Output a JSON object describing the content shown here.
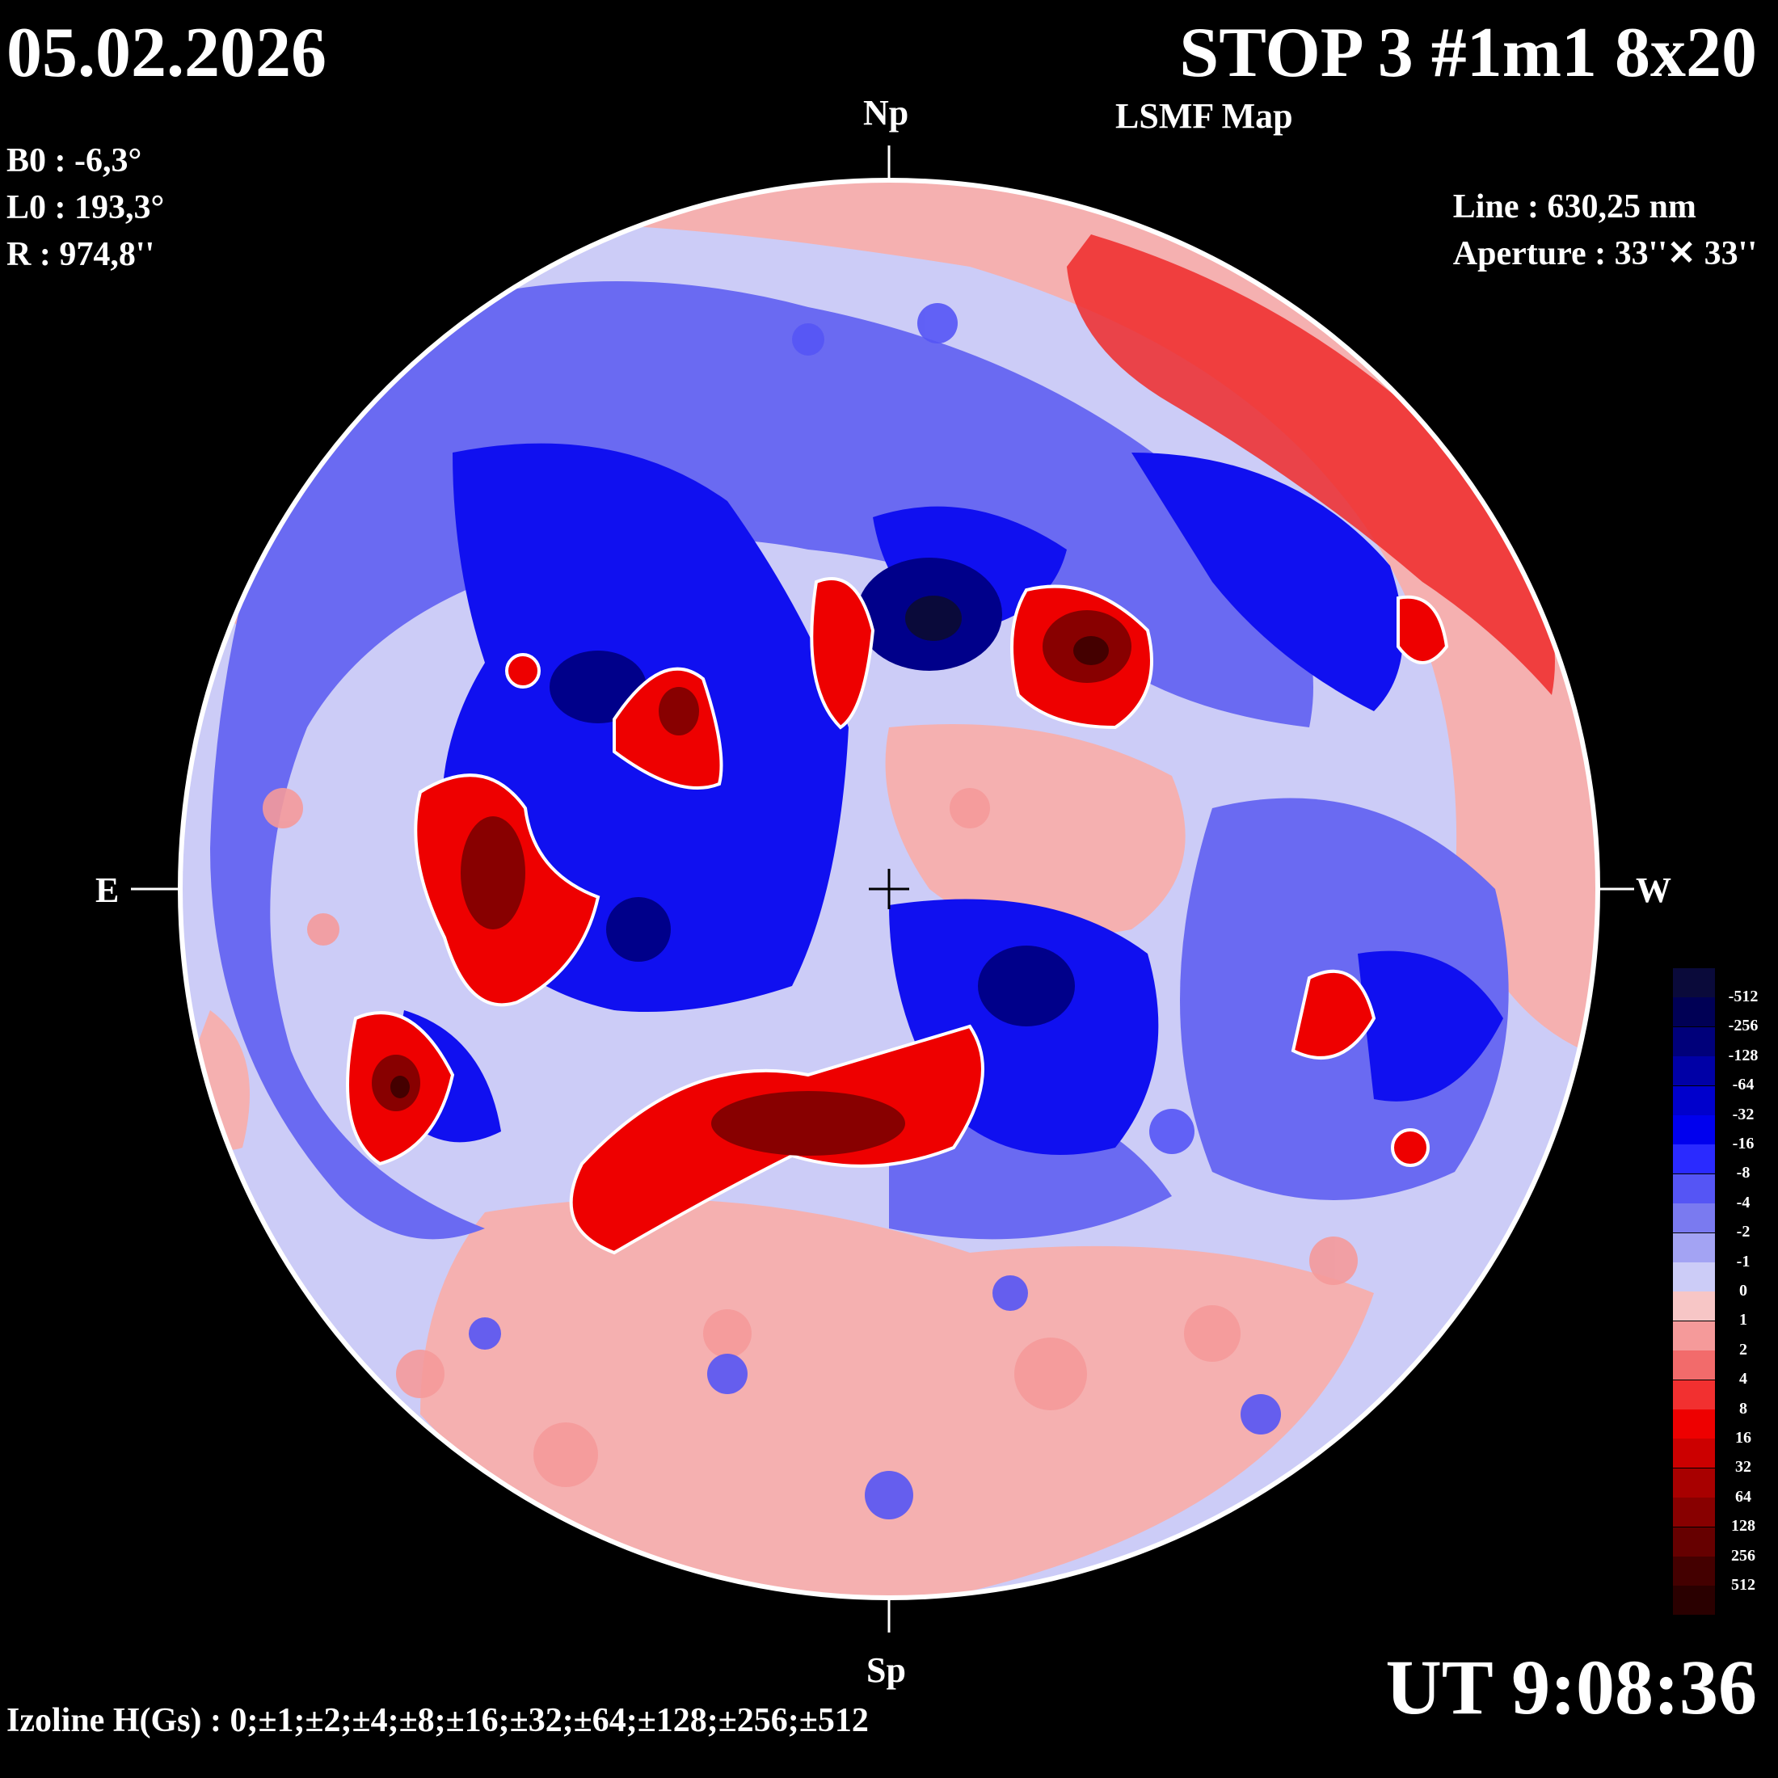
{
  "header": {
    "date": "05.02.2026",
    "title": "STOP 3 #1m1 8x20",
    "subtitle": "LSMF  Map"
  },
  "params": {
    "b0": "B0 : -6,3°",
    "l0": "L0 : 193,3°",
    "r": "R  : 974,8''"
  },
  "instrument": {
    "line": "Line :  630,25 nm",
    "aperture": "Aperture : 33''✕ 33''"
  },
  "directions": {
    "north": "Np",
    "south": "Sp",
    "east": "E",
    "west": "W"
  },
  "time": "UT 9:08:36",
  "izoline": "Izoline H(Gs) : 0;±1;±2;±4;±8;±16;±32;±64;±128;±256;±512",
  "legend": {
    "levels": [
      {
        "label": "-512",
        "color": "#0a0a3a"
      },
      {
        "label": "-256",
        "color": "#000055"
      },
      {
        "label": "-128",
        "color": "#00007a"
      },
      {
        "label": "-64",
        "color": "#0000a6"
      },
      {
        "label": "-32",
        "color": "#0000cc"
      },
      {
        "label": "-16",
        "color": "#0000ee"
      },
      {
        "label": "-8",
        "color": "#2a2aff"
      },
      {
        "label": "-4",
        "color": "#5555f5"
      },
      {
        "label": "-2",
        "color": "#7a7af0"
      },
      {
        "label": "-1",
        "color": "#a3a3f3"
      },
      {
        "label": "0",
        "color": "#ccccf7"
      },
      {
        "label": "1",
        "color": "#f7c6c6"
      },
      {
        "label": "2",
        "color": "#f59a9a"
      },
      {
        "label": "4",
        "color": "#f26b6b"
      },
      {
        "label": "8",
        "color": "#f23030"
      },
      {
        "label": "16",
        "color": "#ee0000"
      },
      {
        "label": "32",
        "color": "#cc0000"
      },
      {
        "label": "64",
        "color": "#a80000"
      },
      {
        "label": "128",
        "color": "#880000"
      },
      {
        "label": "256",
        "color": "#660000"
      },
      {
        "label": "512",
        "color": "#440000"
      },
      {
        "label": "",
        "color": "#2a0000"
      }
    ]
  }
}
